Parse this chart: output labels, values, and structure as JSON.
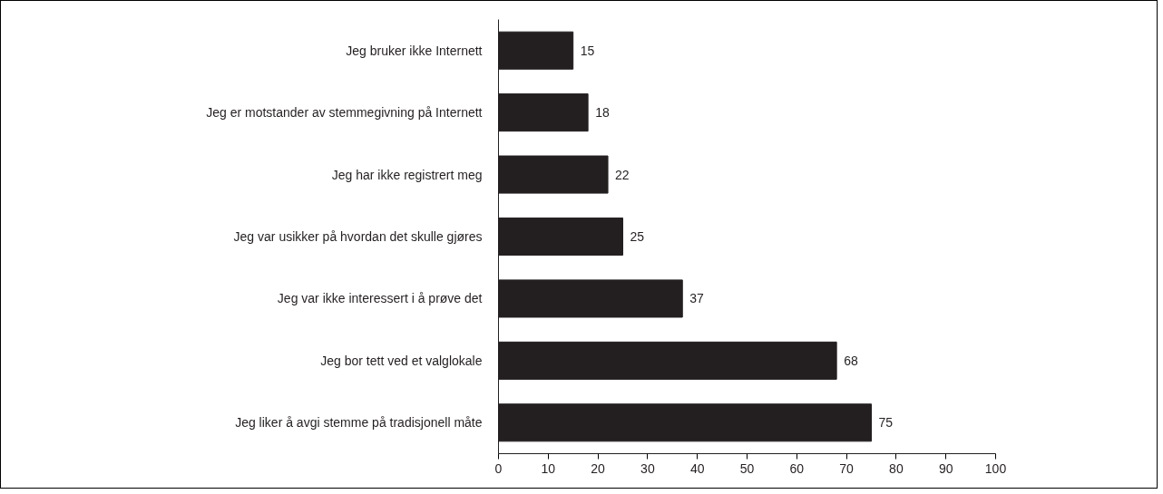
{
  "chart_data": {
    "type": "bar",
    "orientation": "horizontal",
    "categories": [
      "Jeg bruker ikke Internett",
      "Jeg er motstander av stemmegivning på Internett",
      "Jeg har ikke registrert meg",
      "Jeg var usikker på hvordan det skulle gjøres",
      "Jeg var ikke interessert i å prøve det",
      "Jeg bor tett ved et valglokale",
      "Jeg liker å avgi stemme på tradisjonell måte"
    ],
    "values": [
      15,
      18,
      22,
      25,
      37,
      68,
      75
    ],
    "color": "#231f20",
    "xlim": [
      0,
      100
    ],
    "xticks": [
      0,
      10,
      20,
      30,
      40,
      50,
      60,
      70,
      80,
      90,
      100
    ],
    "data_labels": true,
    "grid": false
  }
}
